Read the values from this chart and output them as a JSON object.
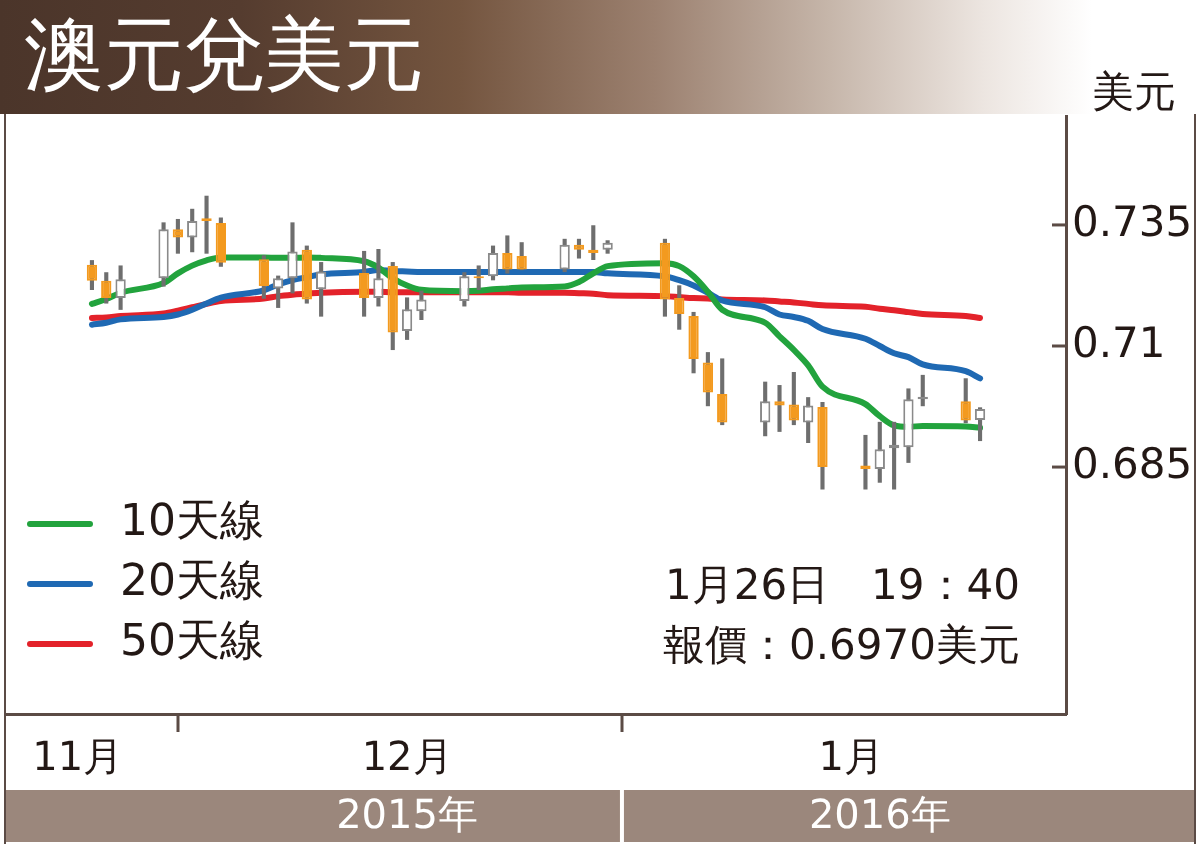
{
  "chart_data": {
    "type": "candlestick",
    "title": "澳元兌美元",
    "ylabel": "美元",
    "x": [
      "2015-11-25",
      "2015-11-26",
      "2015-11-27",
      "2015-11-30",
      "2015-12-01",
      "2015-12-02",
      "2015-12-03",
      "2015-12-04",
      "2015-12-07",
      "2015-12-08",
      "2015-12-09",
      "2015-12-10",
      "2015-12-11",
      "2015-12-14",
      "2015-12-15",
      "2015-12-16",
      "2015-12-17",
      "2015-12-18",
      "2015-12-21",
      "2015-12-22",
      "2015-12-23",
      "2015-12-24",
      "2015-12-25",
      "2015-12-28",
      "2015-12-29",
      "2015-12-30",
      "2015-12-31",
      "2016-01-04",
      "2016-01-05",
      "2016-01-06",
      "2016-01-07",
      "2016-01-08",
      "2016-01-11",
      "2016-01-12",
      "2016-01-13",
      "2016-01-14",
      "2016-01-15",
      "2016-01-18",
      "2016-01-19",
      "2016-01-20",
      "2016-01-21",
      "2016-01-22",
      "2016-01-25",
      "2016-01-26"
    ],
    "ohlc": [
      [
        0.7268,
        0.7276,
        0.7217,
        0.7235
      ],
      [
        0.7235,
        0.7251,
        0.7189,
        0.7199
      ],
      [
        0.7199,
        0.7265,
        0.7176,
        0.7238
      ],
      [
        0.724,
        0.7354,
        0.7224,
        0.7341
      ],
      [
        0.7341,
        0.7361,
        0.7292,
        0.7324
      ],
      [
        0.7324,
        0.7382,
        0.7295,
        0.7358
      ],
      [
        0.7364,
        0.7409,
        0.7292,
        0.7358
      ],
      [
        0.7354,
        0.7364,
        0.7265,
        0.7272
      ],
      [
        0.7279,
        0.7286,
        0.7199,
        0.7224
      ],
      [
        0.7219,
        0.7244,
        0.718,
        0.724
      ],
      [
        0.724,
        0.7354,
        0.721,
        0.7295
      ],
      [
        0.7299,
        0.7306,
        0.7189,
        0.7196
      ],
      [
        0.7217,
        0.7272,
        0.7162,
        0.7254
      ],
      [
        0.7251,
        0.7295,
        0.7162,
        0.7199
      ],
      [
        0.7199,
        0.7299,
        0.7183,
        0.724
      ],
      [
        0.7265,
        0.7272,
        0.7093,
        0.7128
      ],
      [
        0.7131,
        0.7199,
        0.7114,
        0.7176
      ],
      [
        0.7172,
        0.7213,
        0.7155,
        0.7196
      ],
      [
        0.7193,
        0.7251,
        0.7183,
        0.7244
      ],
      [
        0.7244,
        0.7265,
        0.7217,
        0.724
      ],
      [
        0.7244,
        0.7306,
        0.7237,
        0.7292
      ],
      [
        0.7292,
        0.7327,
        0.7251,
        0.7258
      ],
      [
        0.7286,
        0.7313,
        0.7258,
        0.7258
      ],
      [
        0.7258,
        0.732,
        0.7254,
        0.7309
      ],
      [
        0.7309,
        0.732,
        0.7282,
        0.7299
      ],
      [
        0.7299,
        0.7348,
        0.7279,
        0.7292
      ],
      [
        0.7299,
        0.7317,
        0.7292,
        0.7313
      ],
      [
        0.7313,
        0.732,
        0.7162,
        0.7196
      ],
      [
        0.7199,
        0.7224,
        0.7135,
        0.7166
      ],
      [
        0.7162,
        0.7169,
        0.7045,
        0.7073
      ],
      [
        0.7066,
        0.7086,
        0.6977,
        0.7004
      ],
      [
        0.7001,
        0.7073,
        0.6938,
        0.6942
      ],
      [
        0.6942,
        0.7025,
        0.6915,
        0.6986
      ],
      [
        0.6986,
        0.7018,
        0.6924,
        0.6977
      ],
      [
        0.6979,
        0.7045,
        0.6938,
        0.6946
      ],
      [
        0.6942,
        0.6993,
        0.6901,
        0.6977
      ],
      [
        0.6974,
        0.6983,
        0.6805,
        0.685
      ],
      [
        0.6853,
        0.6915,
        0.6805,
        0.6846
      ],
      [
        0.6846,
        0.6942,
        0.6819,
        0.6887
      ],
      [
        0.6889,
        0.6942,
        0.6805,
        0.6896
      ],
      [
        0.6891,
        0.7011,
        0.686,
        0.699
      ],
      [
        0.699,
        0.7039,
        0.6977,
        0.6995
      ],
      [
        0.6986,
        0.7032,
        0.6942,
        0.6946
      ],
      [
        0.6947,
        0.6972,
        0.6905,
        0.697
      ]
    ],
    "colors": [
      "#f39a1f",
      "#f39a1f",
      "#8a8a8a",
      "#8a8a8a",
      "#f39a1f",
      "#8a8a8a",
      "#f39a1f",
      "#f39a1f",
      "#f39a1f",
      "#8a8a8a",
      "#8a8a8a",
      "#f39a1f",
      "#8a8a8a",
      "#f39a1f",
      "#8a8a8a",
      "#f39a1f",
      "#8a8a8a",
      "#8a8a8a",
      "#8a8a8a",
      "#f39a1f",
      "#8a8a8a",
      "#f39a1f",
      "#f39a1f",
      "#8a8a8a",
      "#f39a1f",
      "#f39a1f",
      "#8a8a8a",
      "#f39a1f",
      "#f39a1f",
      "#f39a1f",
      "#f39a1f",
      "#f39a1f",
      "#8a8a8a",
      "#f39a1f",
      "#f39a1f",
      "#8a8a8a",
      "#f39a1f",
      "#f39a1f",
      "#8a8a8a",
      "#8a8a8a",
      "#8a8a8a",
      "#8a8a8a",
      "#f39a1f",
      "#8a8a8a"
    ],
    "series": [
      {
        "name": "10天線",
        "type": "line",
        "color": "#22a33d",
        "values": [
          0.7187,
          0.7197,
          0.721,
          0.723,
          0.725,
          0.7266,
          0.7277,
          0.7283,
          0.7283,
          0.7282,
          0.7282,
          0.7283,
          0.7282,
          0.7275,
          0.7262,
          0.724,
          0.7225,
          0.7216,
          0.7213,
          0.7214,
          0.7217,
          0.7219,
          0.7221,
          0.7223,
          0.7232,
          0.725,
          0.7265,
          0.7271,
          0.7265,
          0.7244,
          0.7212,
          0.7175,
          0.7148,
          0.712,
          0.7092,
          0.706,
          0.7016,
          0.698,
          0.6955,
          0.6936,
          0.6933,
          0.6935,
          0.6934,
          0.6931
        ]
      },
      {
        "name": "20天線",
        "type": "line",
        "color": "#1f69b3",
        "values": [
          0.7144,
          0.7148,
          0.7155,
          0.716,
          0.7165,
          0.7175,
          0.7188,
          0.72,
          0.7215,
          0.7227,
          0.7236,
          0.7242,
          0.7248,
          0.7253,
          0.7257,
          0.7255,
          0.7254,
          0.7253,
          0.7253,
          0.7253,
          0.7253,
          0.7253,
          0.7253,
          0.7253,
          0.7253,
          0.7253,
          0.725,
          0.7244,
          0.7236,
          0.7225,
          0.721,
          0.7194,
          0.718,
          0.7165,
          0.716,
          0.7152,
          0.7135,
          0.7115,
          0.71,
          0.7085,
          0.7077,
          0.7062,
          0.7048,
          0.7033
        ]
      },
      {
        "name": "50天線",
        "type": "line",
        "color": "#e3222a",
        "values": [
          0.7158,
          0.7159,
          0.7162,
          0.7167,
          0.7173,
          0.718,
          0.7187,
          0.7193,
          0.7198,
          0.7203,
          0.7206,
          0.7208,
          0.721,
          0.7212,
          0.7212,
          0.7211,
          0.7211,
          0.7211,
          0.7211,
          0.7211,
          0.7211,
          0.7211,
          0.721,
          0.721,
          0.7209,
          0.7208,
          0.7205,
          0.7203,
          0.7201,
          0.7199,
          0.7198,
          0.7196,
          0.7194,
          0.7192,
          0.719,
          0.7187,
          0.7184,
          0.7181,
          0.7177,
          0.7174,
          0.717,
          0.7166,
          0.7162,
          0.7158
        ]
      }
    ],
    "xlim": [
      "2015-11-19",
      "2016-02-01"
    ],
    "xticks": [
      {
        "value": "2015-11-24",
        "label": "11月"
      },
      {
        "value": "2015-12-01",
        "label": null
      },
      {
        "value": "2015-12-17",
        "label": "12月"
      },
      {
        "value": "2016-01-01",
        "label": null
      },
      {
        "value": "2016-01-17",
        "label": "1月"
      }
    ],
    "x2lim": [
      "2015-11-19",
      "2016-02-01"
    ],
    "x2ticks": [
      {
        "value": "2015-12-17",
        "label": "2015年"
      },
      {
        "value": "2016-01-01",
        "label": null
      },
      {
        "value": "2016-01-19",
        "label": "2016年"
      }
    ],
    "ylim": [
      0.634,
      0.7575
    ],
    "yticks": [
      0.685,
      0.71,
      0.735
    ],
    "legend": "bottom left",
    "marker": "none",
    "annotations": [
      "1月26日　19：40",
      "報價：0.6970美元"
    ]
  }
}
